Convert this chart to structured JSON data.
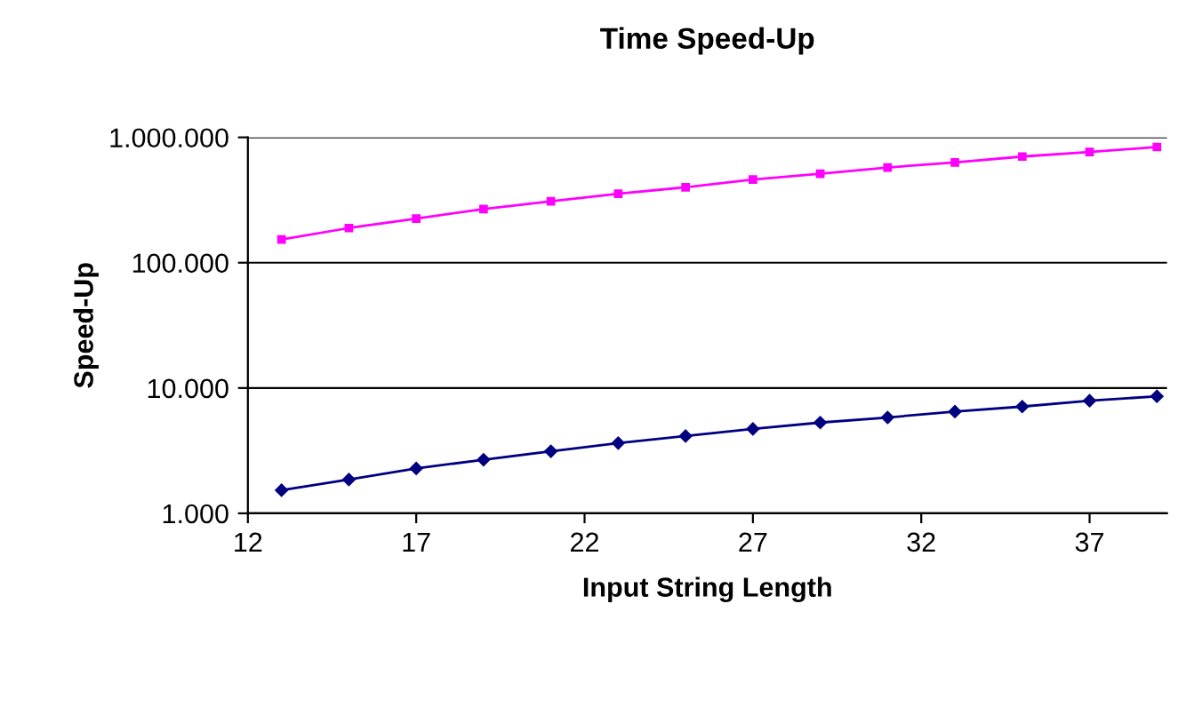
{
  "chart_data": {
    "type": "line",
    "title": "Time Speed-Up",
    "xlabel": "Input String Length",
    "ylabel": "Speed-Up",
    "x": [
      13,
      15,
      17,
      19,
      21,
      23,
      25,
      27,
      29,
      31,
      33,
      35,
      37,
      39
    ],
    "series": [
      {
        "color": "#000080",
        "marker": "diamond",
        "values": [
          1530,
          1860,
          2280,
          2680,
          3130,
          3640,
          4140,
          4710,
          5300,
          5820,
          6480,
          7110,
          7910,
          8590
        ]
      },
      {
        "color": "#ff00ff",
        "marker": "square",
        "values": [
          153000,
          189000,
          225000,
          268000,
          309000,
          355000,
          400000,
          461000,
          512000,
          575000,
          632000,
          703000,
          764000,
          838000
        ]
      }
    ],
    "log": "y",
    "xlim": [
      12,
      39.3
    ],
    "xticks": [
      12,
      17,
      22,
      27,
      32,
      37
    ],
    "ylim": [
      1000,
      1000000
    ],
    "yticks": [
      {
        "value": 1000,
        "label": "1.000"
      },
      {
        "value": 10000,
        "label": "10.000"
      },
      {
        "value": 100000,
        "label": "100.000"
      },
      {
        "value": 1000000,
        "label": "1.000.000"
      }
    ],
    "grid": "y"
  }
}
